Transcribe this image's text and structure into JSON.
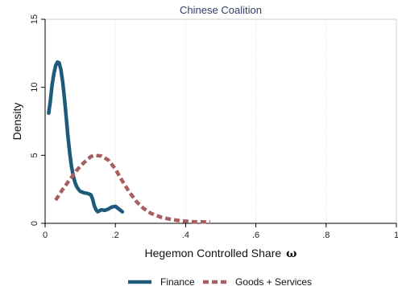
{
  "chart_data": {
    "type": "line",
    "title": "Chinese Coalition",
    "xlabel": "Hegemon Controlled Share",
    "xlabel_symbol": "ω",
    "ylabel": "Density",
    "xlim": [
      0,
      1
    ],
    "ylim": [
      0,
      15
    ],
    "x_ticks": [
      {
        "value": 0,
        "label": "0"
      },
      {
        "value": 0.2,
        "label": ".2"
      },
      {
        "value": 0.4,
        "label": ".4"
      },
      {
        "value": 0.6,
        "label": ".6"
      },
      {
        "value": 0.8,
        "label": ".8"
      },
      {
        "value": 1,
        "label": "1"
      }
    ],
    "y_ticks": [
      {
        "value": 0,
        "label": "0"
      },
      {
        "value": 5,
        "label": "5"
      },
      {
        "value": 10,
        "label": "10"
      },
      {
        "value": 15,
        "label": "15"
      }
    ],
    "grid": "vertical dotted at x ticks",
    "legend_position": "bottom",
    "title_color": "#2f3e66",
    "series": [
      {
        "name": "Finance",
        "color": "#1f5a7a",
        "style": "solid",
        "points": [
          [
            0.01,
            8.1
          ],
          [
            0.015,
            9.0
          ],
          [
            0.02,
            10.2
          ],
          [
            0.025,
            11.0
          ],
          [
            0.03,
            11.6
          ],
          [
            0.035,
            11.85
          ],
          [
            0.04,
            11.8
          ],
          [
            0.045,
            11.3
          ],
          [
            0.05,
            10.4
          ],
          [
            0.055,
            9.2
          ],
          [
            0.06,
            7.8
          ],
          [
            0.065,
            6.4
          ],
          [
            0.07,
            5.2
          ],
          [
            0.075,
            4.2
          ],
          [
            0.08,
            3.5
          ],
          [
            0.085,
            3.0
          ],
          [
            0.09,
            2.7
          ],
          [
            0.095,
            2.5
          ],
          [
            0.1,
            2.35
          ],
          [
            0.11,
            2.25
          ],
          [
            0.12,
            2.2
          ],
          [
            0.13,
            2.1
          ],
          [
            0.135,
            1.8
          ],
          [
            0.14,
            1.3
          ],
          [
            0.145,
            1.0
          ],
          [
            0.15,
            0.85
          ],
          [
            0.16,
            1.0
          ],
          [
            0.17,
            0.95
          ],
          [
            0.18,
            1.05
          ],
          [
            0.19,
            1.2
          ],
          [
            0.2,
            1.25
          ],
          [
            0.21,
            1.05
          ],
          [
            0.22,
            0.85
          ]
        ]
      },
      {
        "name": "Goods + Services",
        "color": "#a85f5f",
        "style": "dashed",
        "points": [
          [
            0.03,
            1.7
          ],
          [
            0.05,
            2.5
          ],
          [
            0.07,
            3.2
          ],
          [
            0.09,
            3.9
          ],
          [
            0.11,
            4.45
          ],
          [
            0.13,
            4.9
          ],
          [
            0.14,
            5.0
          ],
          [
            0.16,
            4.95
          ],
          [
            0.18,
            4.65
          ],
          [
            0.2,
            4.0
          ],
          [
            0.22,
            3.1
          ],
          [
            0.24,
            2.3
          ],
          [
            0.26,
            1.6
          ],
          [
            0.28,
            1.1
          ],
          [
            0.3,
            0.75
          ],
          [
            0.33,
            0.45
          ],
          [
            0.36,
            0.28
          ],
          [
            0.39,
            0.18
          ],
          [
            0.42,
            0.12
          ],
          [
            0.45,
            0.1
          ],
          [
            0.47,
            0.1
          ]
        ]
      }
    ]
  }
}
